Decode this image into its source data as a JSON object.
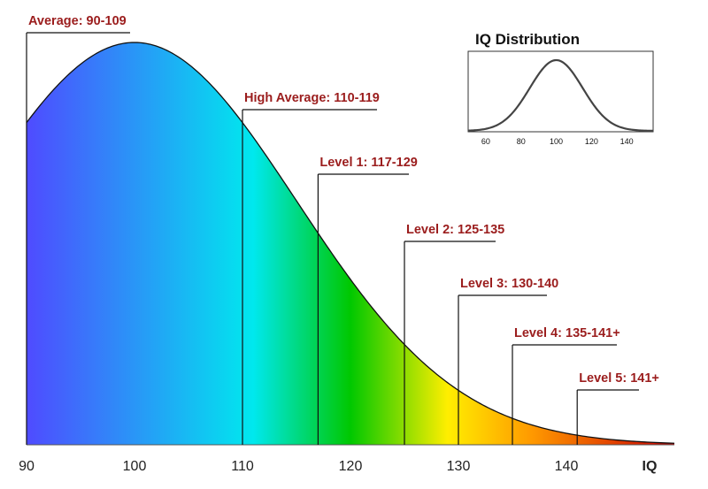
{
  "chart_data": {
    "type": "area",
    "title": "",
    "xlabel": "IQ",
    "ylabel": "",
    "xlim": [
      90,
      150
    ],
    "x_ticks": [
      "90",
      "100",
      "110",
      "120",
      "130",
      "140"
    ],
    "distribution": {
      "mean": 100,
      "sd": 15
    },
    "gradient_colors": [
      "#4f4bff",
      "#00e8ee",
      "#00c800",
      "#ffee00",
      "#ff9900",
      "#cc0000"
    ],
    "label_color": "#9b1d1d",
    "ranges": [
      {
        "label": "Average: 90-109",
        "marker": 90
      },
      {
        "label": "High Average: 110-119",
        "marker": 110
      },
      {
        "label": "Level 1: 117-129",
        "marker": 117
      },
      {
        "label": "Level 2: 125-135",
        "marker": 125
      },
      {
        "label": "Level 3: 130-140",
        "marker": 130
      },
      {
        "label": "Level 4: 135-141+",
        "marker": 135
      },
      {
        "label": "Level 5: 141+",
        "marker": 141
      }
    ],
    "inset": {
      "title": "IQ Distribution",
      "type": "line",
      "xlim": [
        50,
        155
      ],
      "x_ticks": [
        "60",
        "80",
        "100",
        "120",
        "140"
      ],
      "mean": 100,
      "sd": 15
    }
  }
}
